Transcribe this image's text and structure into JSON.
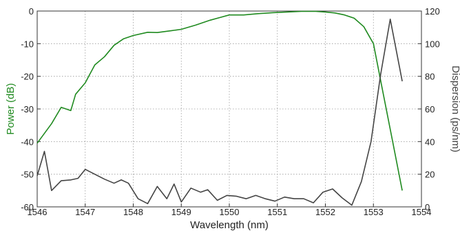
{
  "chart_data": {
    "type": "line",
    "xlabel": "Wavelength (nm)",
    "ylabel_left": "Power (dB)",
    "ylabel_right": "Dispersion (ps/nm)",
    "xlim": [
      1546,
      1554
    ],
    "ylim_left": [
      -60,
      0
    ],
    "ylim_right": [
      0,
      120
    ],
    "grid": true,
    "x_ticks": [
      "1546",
      "1547",
      "1548",
      "1549",
      "1550",
      "1551",
      "1552",
      "1553",
      "1554"
    ],
    "y_left_ticks": [
      "0",
      "-10",
      "-20",
      "-30",
      "-40",
      "-50",
      "-60"
    ],
    "y_right_ticks": [
      "120",
      "100",
      "80",
      "60",
      "40",
      "20",
      "0"
    ],
    "colors": {
      "power": "#1f8a1f",
      "dispersion": "#444444",
      "grid": "#9a9a9a",
      "axis": "#333333"
    },
    "series": [
      {
        "axis": "left",
        "x": [
          1546.0,
          1546.3,
          1546.5,
          1546.7,
          1546.8,
          1547.0,
          1547.2,
          1547.4,
          1547.6,
          1547.8,
          1548.0,
          1548.3,
          1548.5,
          1548.8,
          1549.0,
          1549.3,
          1549.6,
          1549.8,
          1550.0,
          1550.3,
          1550.6,
          1550.9,
          1551.2,
          1551.5,
          1551.8,
          1552.0,
          1552.2,
          1552.4,
          1552.6,
          1552.8,
          1553.0,
          1553.2,
          1553.4,
          1553.6
        ],
        "values": [
          -40.5,
          -34.5,
          -29.5,
          -30.5,
          -25.5,
          -22.0,
          -16.5,
          -14.0,
          -10.5,
          -8.5,
          -7.5,
          -6.5,
          -6.6,
          -6.0,
          -5.6,
          -4.3,
          -2.8,
          -2.0,
          -1.2,
          -1.2,
          -0.8,
          -0.5,
          -0.3,
          -0.1,
          -0.1,
          -0.3,
          -0.6,
          -1.2,
          -2.2,
          -4.8,
          -10.0,
          -25.0,
          -40.0,
          -55.0
        ]
      },
      {
        "axis": "right",
        "x": [
          1546.0,
          1546.15,
          1546.3,
          1546.5,
          1546.7,
          1546.85,
          1547.0,
          1547.2,
          1547.4,
          1547.6,
          1547.75,
          1547.9,
          1548.1,
          1548.3,
          1548.5,
          1548.7,
          1548.85,
          1549.0,
          1549.2,
          1549.4,
          1549.55,
          1549.75,
          1549.95,
          1550.15,
          1550.35,
          1550.55,
          1550.75,
          1550.95,
          1551.15,
          1551.35,
          1551.55,
          1551.75,
          1551.95,
          1552.15,
          1552.35,
          1552.55,
          1552.75,
          1552.95,
          1553.15,
          1553.35,
          1553.6
        ],
        "values": [
          19.0,
          34.0,
          10.0,
          16.0,
          16.5,
          17.5,
          23.0,
          20.0,
          17.0,
          14.5,
          16.5,
          14.5,
          5.0,
          2.0,
          12.5,
          5.0,
          14.0,
          3.0,
          11.5,
          9.0,
          10.5,
          4.0,
          7.0,
          6.5,
          5.0,
          7.0,
          5.0,
          3.5,
          6.0,
          5.0,
          5.0,
          2.5,
          9.0,
          11.0,
          5.5,
          1.0,
          15.5,
          40.0,
          81.0,
          115.0,
          77.0
        ]
      }
    ]
  }
}
